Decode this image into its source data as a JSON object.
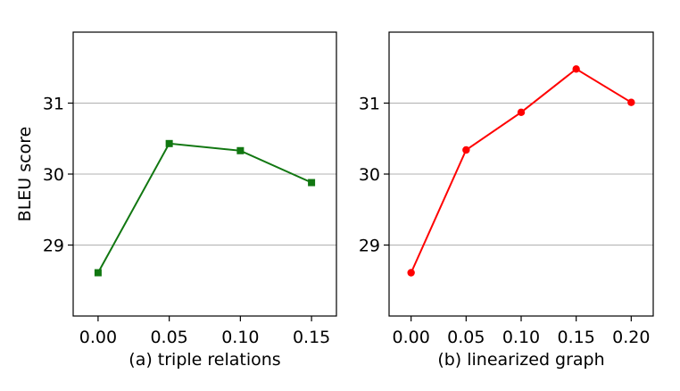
{
  "chart_data": [
    {
      "type": "line",
      "xlabel": "(a) triple relations",
      "ylabel": "BLEU score",
      "x_ticks": [
        "0.00",
        "0.05",
        "0.10",
        "0.15"
      ],
      "y_ticks": [
        "29",
        "30",
        "31"
      ],
      "xlim": [
        -0.0175,
        0.1675
      ],
      "ylim": [
        28.0,
        32.0
      ],
      "grid": "horizontal",
      "series": [
        {
          "color": "#117711",
          "marker": "square",
          "x": [
            0.0,
            0.05,
            0.1,
            0.15
          ],
          "y": [
            28.61,
            30.43,
            30.33,
            29.88
          ]
        }
      ]
    },
    {
      "type": "line",
      "xlabel": "(b) linearized graph",
      "ylabel": "",
      "x_ticks": [
        "0.00",
        "0.05",
        "0.10",
        "0.15",
        "0.20"
      ],
      "y_ticks": [
        "29",
        "30",
        "31"
      ],
      "xlim": [
        -0.02,
        0.22
      ],
      "ylim": [
        28.0,
        32.0
      ],
      "grid": "horizontal",
      "series": [
        {
          "color": "#ff0000",
          "marker": "circle",
          "x": [
            0.0,
            0.05,
            0.1,
            0.15,
            0.2
          ],
          "y": [
            28.61,
            30.34,
            30.87,
            31.48,
            31.01
          ]
        }
      ]
    }
  ]
}
